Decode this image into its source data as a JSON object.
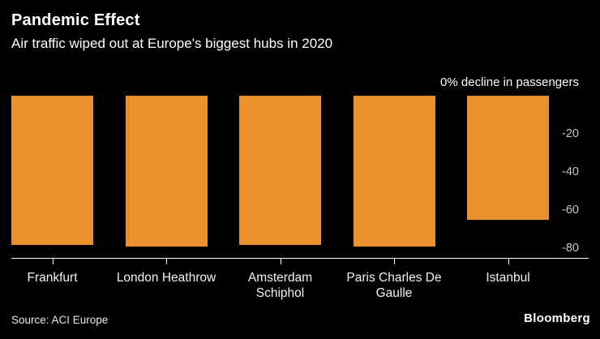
{
  "chart": {
    "title": "Pandemic Effect",
    "subtitle": "Air traffic wiped out at Europe's biggest hubs in 2020",
    "annotation": "0% decline in passengers",
    "source": "Source: ACI Europe",
    "logo": "Bloomberg"
  },
  "chart_data": {
    "type": "bar",
    "orientation": "vertical-negative",
    "title": "Pandemic Effect",
    "subtitle": "Air traffic wiped out at Europe's biggest hubs in 2020",
    "categories": [
      "Frankfurt",
      "London Heathrow",
      "Amsterdam Schiphol",
      "Paris Charles De Gaulle",
      "Istanbul"
    ],
    "values": [
      -78,
      -79,
      -78,
      -79,
      -65
    ],
    "unit": "% decline in passengers",
    "zero_label": "0% decline in passengers",
    "yticks": [
      -20,
      -40,
      -60,
      -80
    ],
    "ylim": [
      0,
      -85
    ],
    "bar_color": "#E8912D",
    "background_color": "#000000",
    "text_color": "#FFFFFF",
    "tick_label_color": "#C8C8C8",
    "grid": "off",
    "legend": "none"
  }
}
